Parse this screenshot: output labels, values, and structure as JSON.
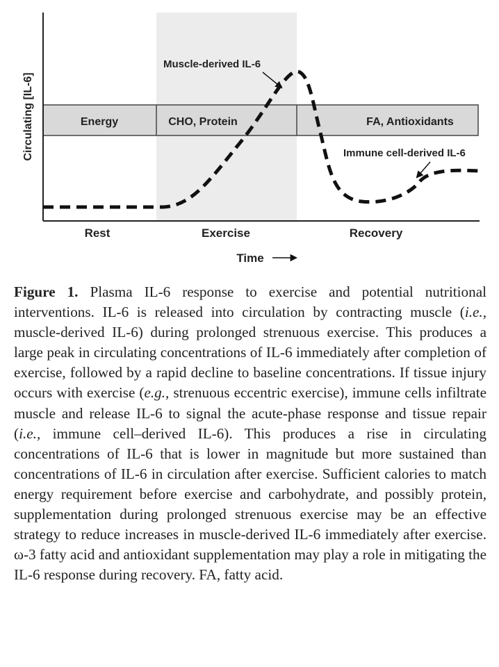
{
  "figure": {
    "axis": {
      "ylabel": "Circulating [IL-6]",
      "xlabel": "Time",
      "arrow": "⟶"
    },
    "phases": [
      "Rest",
      "Exercise",
      "Recovery"
    ],
    "band_labels": [
      "Energy",
      "CHO, Protein",
      "FA, Antioxidants"
    ],
    "annotations": {
      "muscle": "Muscle-derived IL-6",
      "immune": "Immune cell-derived IL-6"
    },
    "colors": {
      "exercise_shade": "#ececec",
      "band_fill": "#d9d9d9",
      "line": "#111111"
    },
    "curve_style": "dashed"
  },
  "caption": {
    "label": "Figure 1.",
    "parts": [
      {
        "t": " Plasma IL-6 response to exercise and potential nutritional interventions. IL-6 is released into circulation by contracting muscle ("
      },
      {
        "t": "i.e.,",
        "i": true
      },
      {
        "t": " muscle-derived IL-6) during prolonged strenuous exercise. This produces a large peak in circulating concentrations of IL-6 immediately after completion of exercise, followed by a rapid decline to baseline concentrations. If tissue injury occurs with exercise ("
      },
      {
        "t": "e.g.,",
        "i": true
      },
      {
        "t": " strenuous eccentric exercise), immune cells infiltrate muscle and release IL-6 to signal the acute-phase response and tissue repair ("
      },
      {
        "t": "i.e.,",
        "i": true
      },
      {
        "t": " immune cell–derived IL-6). This produces a rise in circulating concentrations of IL-6 that is lower in magnitude but more sustained than concentrations of IL-6 in circulation after exercise. Sufficient calories to match energy requirement before exercise and carbohydrate, and possibly protein, supplementation during prolonged strenuous exercise may be an effective strategy to reduce increases in muscle-derived IL-6 immediately after exercise. ω-3 fatty acid and antioxidant supplementation may play a role in mitigating the IL-6 response during recovery. FA, fatty acid."
      }
    ]
  }
}
